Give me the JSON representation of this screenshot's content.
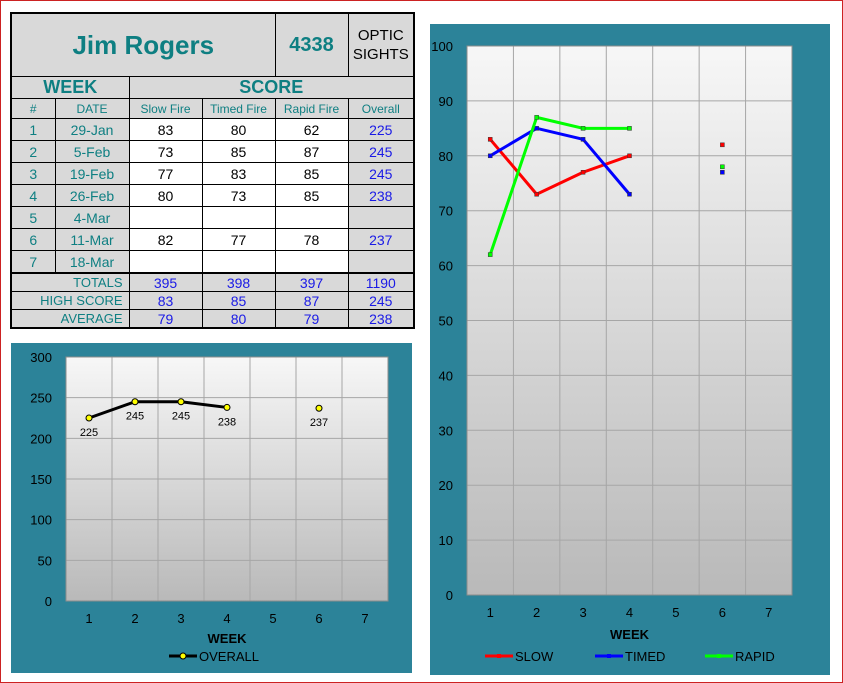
{
  "shooter": {
    "name": "Jim Rogers",
    "id": "4338",
    "sight_type": [
      "OPTIC",
      "SIGHTS"
    ]
  },
  "table": {
    "week_header": "WEEK",
    "score_header": "SCORE",
    "columns": [
      "#",
      "DATE",
      "Slow Fire",
      "Timed Fire",
      "Rapid Fire",
      "Overall"
    ],
    "rows": [
      {
        "num": "1",
        "date": "29-Jan",
        "slow": "83",
        "timed": "80",
        "rapid": "62",
        "overall": "225"
      },
      {
        "num": "2",
        "date": "5-Feb",
        "slow": "73",
        "timed": "85",
        "rapid": "87",
        "overall": "245"
      },
      {
        "num": "3",
        "date": "19-Feb",
        "slow": "77",
        "timed": "83",
        "rapid": "85",
        "overall": "245"
      },
      {
        "num": "4",
        "date": "26-Feb",
        "slow": "80",
        "timed": "73",
        "rapid": "85",
        "overall": "238"
      },
      {
        "num": "5",
        "date": "4-Mar",
        "slow": "",
        "timed": "",
        "rapid": "",
        "overall": ""
      },
      {
        "num": "6",
        "date": "11-Mar",
        "slow": "82",
        "timed": "77",
        "rapid": "78",
        "overall": "237"
      },
      {
        "num": "7",
        "date": "18-Mar",
        "slow": "",
        "timed": "",
        "rapid": "",
        "overall": ""
      }
    ],
    "summary": [
      {
        "label": "TOTALS",
        "slow": "395",
        "timed": "398",
        "rapid": "397",
        "overall": "1190"
      },
      {
        "label": "HIGH SCORE",
        "slow": "83",
        "timed": "85",
        "rapid": "87",
        "overall": "245"
      },
      {
        "label": "AVERAGE",
        "slow": "79",
        "timed": "80",
        "rapid": "79",
        "overall": "238"
      }
    ]
  },
  "chart_data": [
    {
      "type": "line",
      "xlabel": "WEEK",
      "ylabel": "",
      "x": [
        1,
        2,
        3,
        4,
        5,
        6,
        7
      ],
      "ylim": [
        0,
        300
      ],
      "yticks": [
        0,
        50,
        100,
        150,
        200,
        250,
        300
      ],
      "grid": true,
      "legend": "bottom",
      "series": [
        {
          "name": "OVERALL",
          "color": "#000000",
          "marker_color": "#ffff00",
          "values": [
            225,
            245,
            245,
            238,
            null,
            237,
            null
          ],
          "labels": [
            "225",
            "245",
            "245",
            "238",
            "",
            "237",
            ""
          ]
        }
      ]
    },
    {
      "type": "line",
      "xlabel": "WEEK",
      "ylabel": "",
      "x": [
        1,
        2,
        3,
        4,
        5,
        6,
        7
      ],
      "ylim": [
        0,
        100
      ],
      "yticks": [
        0,
        10,
        20,
        30,
        40,
        50,
        60,
        70,
        80,
        90,
        100
      ],
      "grid": true,
      "legend": "bottom",
      "series": [
        {
          "name": "SLOW",
          "color": "#ff0000",
          "values": [
            83,
            73,
            77,
            80,
            null,
            82,
            null
          ]
        },
        {
          "name": "TIMED",
          "color": "#0000ff",
          "values": [
            80,
            85,
            83,
            73,
            null,
            77,
            null
          ]
        },
        {
          "name": "RAPID",
          "color": "#00ff00",
          "values": [
            62,
            87,
            85,
            85,
            null,
            78,
            null
          ]
        }
      ]
    }
  ]
}
